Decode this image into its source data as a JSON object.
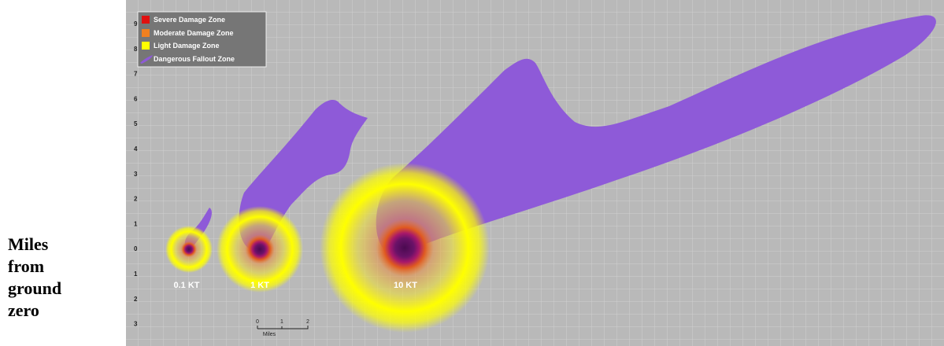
{
  "caption": "Miles from ground zero",
  "legend": [
    "Severe Damage Zone",
    "Moderate Damage Zone",
    "Light Damage Zone",
    "Dangerous Fallout Zone"
  ],
  "axis_labels": [
    "9",
    "8",
    "7",
    "6",
    "5",
    "4",
    "3",
    "2",
    "1",
    "0",
    "1",
    "2",
    "3"
  ],
  "yield_labels": [
    "0.1 KT",
    "1 KT",
    "10 KT"
  ],
  "scale_bar": {
    "ticks": [
      "0",
      "1",
      "2"
    ],
    "unit": "Miles"
  }
}
